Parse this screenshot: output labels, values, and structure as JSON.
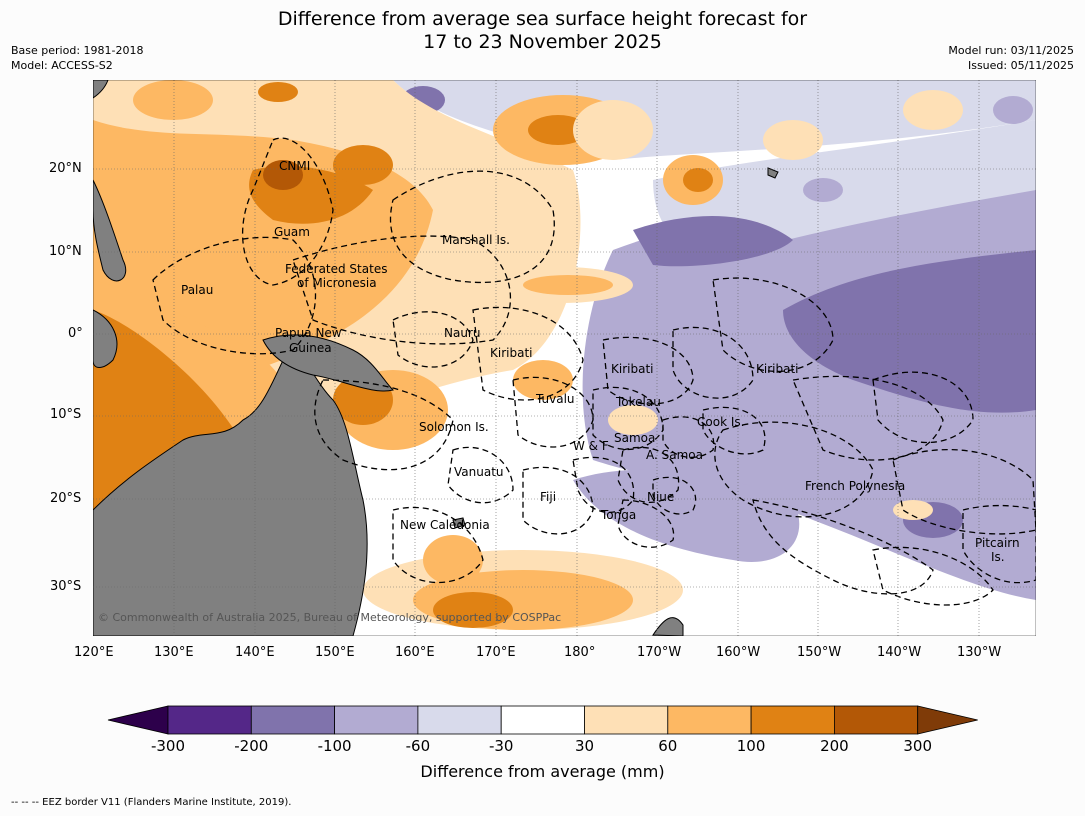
{
  "header": {
    "title_line1": "Difference from average sea surface height forecast for",
    "title_line2": "17 to 23 November 2025",
    "base_period": "Base period: 1981-2018",
    "model": "Model: ACCESS-S2",
    "model_run": "Model run: 03/11/2025",
    "issued": "Issued: 05/11/2025"
  },
  "axes": {
    "lon_labels": [
      "120°E",
      "130°E",
      "140°E",
      "150°E",
      "160°E",
      "170°E",
      "180°",
      "170°W",
      "160°W",
      "150°W",
      "140°W",
      "130°W"
    ],
    "lat_labels": [
      "20°N",
      "10°N",
      "0°",
      "10°S",
      "20°S",
      "30°S"
    ]
  },
  "regions": {
    "cnmi": "CNMI",
    "guam": "Guam",
    "marshall": "Marshall Is.",
    "fsm_1": "Federated States",
    "fsm_2": "of Micronesia",
    "palau": "Palau",
    "png_1": "Papua New",
    "png_2": "Guinea",
    "nauru": "Nauru",
    "kiribati_w": "Kiribati",
    "kiribati_c": "Kiribati",
    "kiribati_e": "Kiribati",
    "tuvalu": "Tuvalu",
    "tokelau": "Tokelau",
    "solomon": "Solomon Is.",
    "samoa": "Samoa",
    "wf": "W & F",
    "asamoa": "A. Samoa",
    "cook": "Cook Is.",
    "vanuatu": "Vanuatu",
    "fiji": "Fiji",
    "niue": "Niue",
    "tonga": "Tonga",
    "frpoly": "French Polynesia",
    "newcal": "New Caledonia",
    "pitcairn_1": "Pitcairn",
    "pitcairn_2": "Is."
  },
  "copyright": "© Commonwealth of Australia 2025, Bureau of Meteorology, supported by COSPPac",
  "colorbar": {
    "title": "Difference from average (mm)",
    "ticks": [
      "-300",
      "-200",
      "-100",
      "-60",
      "-30",
      "30",
      "60",
      "100",
      "200",
      "300"
    ],
    "colors": [
      "#2d004b",
      "#542788",
      "#8073ac",
      "#b2abd2",
      "#d8daeb",
      "#ffffff",
      "#fee0b6",
      "#fdb863",
      "#e08214",
      "#b35806",
      "#7f3b08"
    ]
  },
  "footnote": "--  --  -- EEZ border V11 (Flanders Marine Institute, 2019)."
}
